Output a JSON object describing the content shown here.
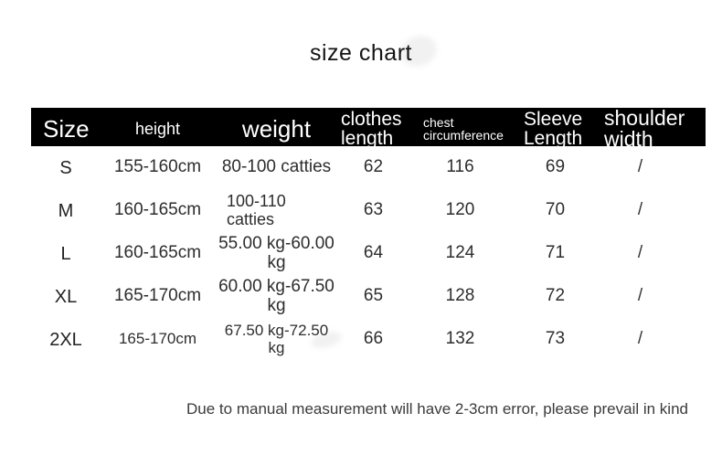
{
  "title": "size chart",
  "note": "Due to manual measurement will have 2-3cm error, please prevail in kind",
  "table": {
    "columns": [
      {
        "key": "size",
        "label": "Size"
      },
      {
        "key": "height",
        "label": "height"
      },
      {
        "key": "weight",
        "label": "weight"
      },
      {
        "key": "clothes_length",
        "label": "clothes\nlength"
      },
      {
        "key": "chest",
        "label": "chest\ncircumference"
      },
      {
        "key": "sleeve",
        "label": "Sleeve\nLength"
      },
      {
        "key": "shoulder",
        "label": "shoulder\nwidth"
      }
    ],
    "rows": [
      {
        "size": "S",
        "height": "155-160cm",
        "weight": "80-100 catties",
        "clothes_length": "62",
        "chest": "116",
        "sleeve": "69",
        "shoulder": "/"
      },
      {
        "size": "M",
        "height": "160-165cm",
        "weight": "100-110\ncatties",
        "clothes_length": "63",
        "chest": "120",
        "sleeve": "70",
        "shoulder": "/"
      },
      {
        "size": "L",
        "height": "160-165cm",
        "weight": "55.00 kg-60.00 kg",
        "clothes_length": "64",
        "chest": "124",
        "sleeve": "71",
        "shoulder": "/"
      },
      {
        "size": "XL",
        "height": "165-170cm",
        "weight": "60.00 kg-67.50 kg",
        "clothes_length": "65",
        "chest": "128",
        "sleeve": "72",
        "shoulder": "/"
      },
      {
        "size": "2XL",
        "height": "165-170cm",
        "weight": "67.50 kg-72.50 kg",
        "clothes_length": "66",
        "chest": "132",
        "sleeve": "73",
        "shoulder": "/"
      }
    ]
  },
  "colors": {
    "page_bg": "#ffffff",
    "header_bg": "#000000",
    "header_text": "#ffffff",
    "title_text": "#151515",
    "body_text": "#2d2d2d",
    "note_text": "#3a3a3a"
  }
}
